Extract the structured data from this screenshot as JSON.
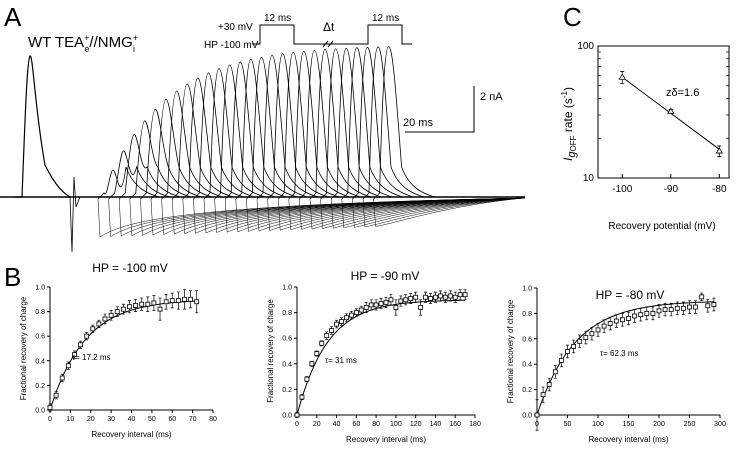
{
  "panel_a": {
    "letter": "A",
    "condition_main": "WT TEA",
    "condition_sup1": "+",
    "condition_sub1": "e",
    "condition_mid": "//NMG",
    "condition_sup2": "+",
    "condition_sub2": "i",
    "protocol": {
      "depol_label": "+30 mV",
      "hp_label": "HP  -100 mV",
      "pulse1_label": "12 ms",
      "interval_label": "Δt",
      "pulse2_label": "12 ms"
    },
    "scale_current": "2 nA",
    "scale_time": "20 ms"
  },
  "panel_b": {
    "letter": "B",
    "ylabel": "Fractional recovery of charge",
    "xlabel": "Recovery interval (ms)"
  },
  "panel_c": {
    "letter": "C",
    "annotation": "zδ=1.6",
    "xlabel": "Recovery potential (mV)",
    "ylabel_i": "I",
    "ylabel_g": "g",
    "ylabel_sub": "OFF",
    "ylabel_rest": " rate (s",
    "ylabel_sup": "-1",
    "ylabel_end": ")"
  },
  "chart_data": [
    {
      "id": "b1",
      "type": "scatter",
      "title": "HP = -100 mV",
      "tau_label": "τ= 17.2 ms",
      "xlabel": "Recovery interval (ms)",
      "ylabel": "Fractional recovery of charge",
      "xlim": [
        0,
        80
      ],
      "ylim": [
        0,
        1.0
      ],
      "xticks": [
        "0",
        "10",
        "20",
        "30",
        "40",
        "50",
        "60",
        "70",
        "80"
      ],
      "yticks": [
        "0.0",
        "0.2",
        "0.4",
        "0.6",
        "0.8",
        "1.0"
      ],
      "tau": 17.2,
      "x": [
        0,
        3,
        6,
        9,
        12,
        15,
        18,
        21,
        24,
        27,
        30,
        33,
        36,
        39,
        42,
        45,
        48,
        51,
        54,
        57,
        60,
        63,
        66,
        69,
        72
      ],
      "y": [
        0.02,
        0.12,
        0.26,
        0.36,
        0.45,
        0.53,
        0.6,
        0.66,
        0.7,
        0.74,
        0.77,
        0.8,
        0.82,
        0.84,
        0.85,
        0.86,
        0.86,
        0.87,
        0.82,
        0.88,
        0.89,
        0.89,
        0.9,
        0.9,
        0.88
      ],
      "err": [
        0.03,
        0.03,
        0.03,
        0.03,
        0.03,
        0.03,
        0.03,
        0.03,
        0.03,
        0.04,
        0.04,
        0.04,
        0.04,
        0.05,
        0.05,
        0.05,
        0.06,
        0.06,
        0.09,
        0.06,
        0.06,
        0.07,
        0.08,
        0.07,
        0.09
      ]
    },
    {
      "id": "b2",
      "type": "scatter",
      "title": "HP = -90 mV",
      "tau_label": "τ= 31 ms",
      "xlabel": "Recovery interval (ms)",
      "ylabel": "Fractional recovery of charge",
      "xlim": [
        0,
        180
      ],
      "ylim": [
        0,
        1.0
      ],
      "xticks": [
        "0",
        "20",
        "40",
        "60",
        "80",
        "100",
        "120",
        "140",
        "160",
        "180"
      ],
      "yticks": [
        "0.0",
        "0.2",
        "0.4",
        "0.6",
        "0.8",
        "1.0"
      ],
      "tau": 31,
      "x": [
        0,
        5,
        10,
        15,
        20,
        25,
        30,
        35,
        40,
        45,
        50,
        55,
        60,
        65,
        70,
        75,
        80,
        85,
        90,
        95,
        100,
        105,
        110,
        115,
        120,
        125,
        130,
        135,
        140,
        145,
        150,
        155,
        160,
        165,
        170
      ],
      "y": [
        0.0,
        0.14,
        0.28,
        0.4,
        0.48,
        0.56,
        0.62,
        0.66,
        0.71,
        0.73,
        0.76,
        0.78,
        0.8,
        0.82,
        0.84,
        0.86,
        0.86,
        0.87,
        0.88,
        0.9,
        0.84,
        0.89,
        0.9,
        0.91,
        0.92,
        0.84,
        0.92,
        0.91,
        0.92,
        0.93,
        0.92,
        0.93,
        0.92,
        0.94,
        0.94
      ],
      "err": [
        0.02,
        0.02,
        0.02,
        0.02,
        0.02,
        0.02,
        0.03,
        0.03,
        0.03,
        0.03,
        0.03,
        0.03,
        0.03,
        0.03,
        0.04,
        0.04,
        0.04,
        0.04,
        0.04,
        0.04,
        0.06,
        0.04,
        0.04,
        0.04,
        0.04,
        0.06,
        0.04,
        0.04,
        0.04,
        0.04,
        0.04,
        0.04,
        0.04,
        0.04,
        0.04
      ]
    },
    {
      "id": "b3",
      "type": "scatter",
      "title": "HP = -80 mV",
      "tau_label": "τ= 62.3 ms",
      "xlabel": "Recovery interval (ms)",
      "ylabel": "Fractional recovery of charge",
      "xlim": [
        0,
        300
      ],
      "ylim": [
        0,
        1.0
      ],
      "xticks": [
        "0",
        "50",
        "100",
        "150",
        "200",
        "250",
        "300"
      ],
      "yticks": [
        "0.0",
        "0.2",
        "0.4",
        "0.6",
        "0.8",
        "1.0"
      ],
      "tau": 62.3,
      "x": [
        0,
        10,
        20,
        30,
        40,
        50,
        60,
        70,
        80,
        90,
        100,
        110,
        120,
        130,
        140,
        150,
        160,
        170,
        180,
        190,
        200,
        210,
        220,
        230,
        240,
        250,
        260,
        270,
        280,
        290
      ],
      "y": [
        0.0,
        0.16,
        0.24,
        0.34,
        0.43,
        0.5,
        0.54,
        0.58,
        0.61,
        0.64,
        0.67,
        0.7,
        0.72,
        0.74,
        0.75,
        0.76,
        0.78,
        0.79,
        0.8,
        0.8,
        0.82,
        0.83,
        0.83,
        0.84,
        0.84,
        0.85,
        0.85,
        0.93,
        0.86,
        0.87
      ],
      "err": [
        0.12,
        0.06,
        0.05,
        0.05,
        0.05,
        0.05,
        0.05,
        0.05,
        0.05,
        0.05,
        0.05,
        0.05,
        0.05,
        0.05,
        0.05,
        0.05,
        0.05,
        0.05,
        0.05,
        0.05,
        0.05,
        0.05,
        0.05,
        0.05,
        0.05,
        0.05,
        0.05,
        0.03,
        0.05,
        0.05
      ]
    },
    {
      "id": "c",
      "type": "scatter",
      "title": "",
      "xlabel": "Recovery potential (mV)",
      "ylabel": "Ig OFF rate (s-1)",
      "xlim": [
        -105,
        -78
      ],
      "ylim": [
        10,
        100
      ],
      "yscale": "log",
      "xticks": [
        "-100",
        "-90",
        "-80"
      ],
      "xtick_values": [
        -100,
        -90,
        -80
      ],
      "yticks": [
        "10",
        "100"
      ],
      "ytick_values": [
        10,
        100
      ],
      "x": [
        -100,
        -90,
        -80
      ],
      "y": [
        58,
        32,
        16
      ],
      "err": [
        6,
        1,
        1.5
      ],
      "fit": [
        [
          -100,
          58
        ],
        [
          -80,
          16.5
        ]
      ]
    }
  ]
}
